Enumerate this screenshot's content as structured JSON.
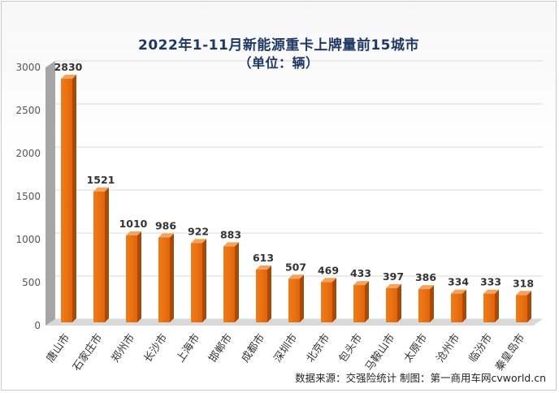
{
  "chart_data": {
    "type": "bar",
    "title": "2022年1-11月新能源重卡上牌量前15城市",
    "subtitle": "（单位：辆）",
    "categories": [
      "唐山市",
      "石家庄市",
      "郑州市",
      "长沙市",
      "上海市",
      "邯郸市",
      "成都市",
      "深圳市",
      "北京市",
      "包头市",
      "马鞍山市",
      "太原市",
      "沧州市",
      "临汾市",
      "秦皇岛市"
    ],
    "values": [
      2830,
      1521,
      1010,
      986,
      922,
      883,
      613,
      507,
      469,
      433,
      397,
      386,
      334,
      333,
      318
    ],
    "ylim": [
      0,
      3000
    ],
    "yticks": [
      0,
      500,
      1000,
      1500,
      2000,
      2500,
      3000
    ],
    "grid": true,
    "bar_color": "#e46c0a",
    "legend": "none"
  },
  "source_note": "数据来源：交强险统计   制图：第一商用车网cvworld.cn"
}
